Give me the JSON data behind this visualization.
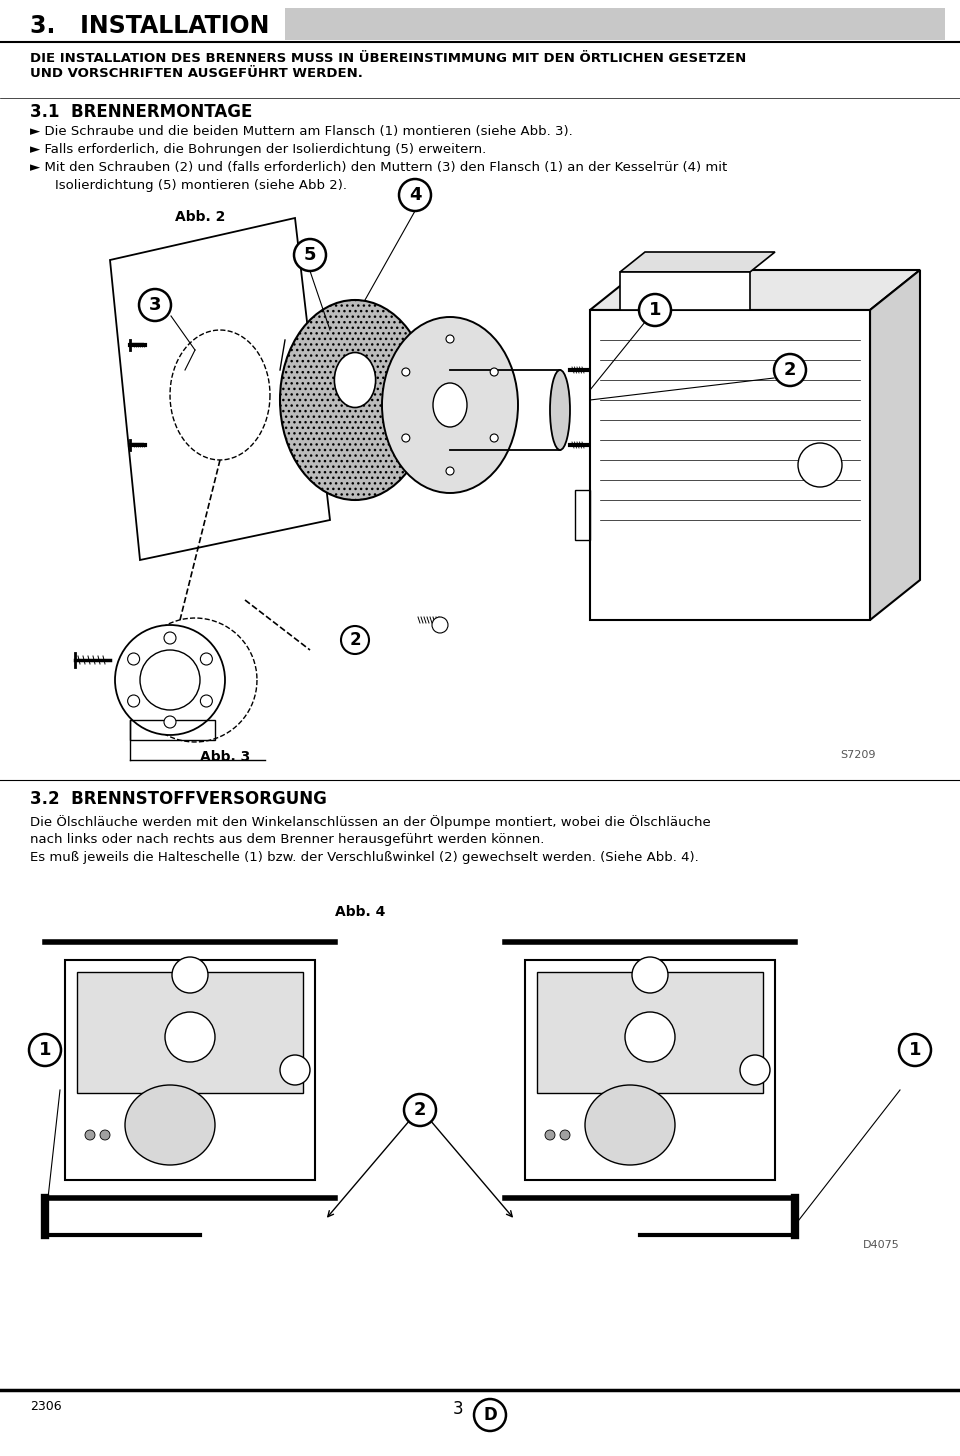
{
  "page_bg": "#ffffff",
  "header_bg": "#c8c8c8",
  "section_title": "3.   INSTALLATION",
  "warning_text": "DIE INSTALLATION DES BRENNERS MUSS IN ÜBEREINSTIMMUNG MIT DEN ÖRTLICHEN GESETZEN\nUND VORSCHRIFTEN AUSGEFÜHRT WERDEN.",
  "subsection_31": "3.1  BRENNERMONTAGE",
  "bullet1": "Die Schraube und die beiden Muttern am Flansch (1) montieren (siehe Abb. 3).",
  "bullet2": "Falls erforderlich, die Bohrungen der Isolierdichtung (5) erweitern.",
  "bullet3a": "Mit den Schrauben (2) und (falls erforderlich) den Muttern (3) den Flansch (1) an der Kesselтür (4) mit",
  "bullet3b": "Isolierdichtung (5) montieren (siehe Abb 2).",
  "abb2_label": "Abb. 2",
  "abb3_label": "Abb. 3",
  "s7209": "S7209",
  "subsection_32": "3.2  BRENNSTOFFVERSORGUNG",
  "para_32a": "Die Ölschläuche werden mit den Winkelanschlüssen an der Ölpumpe montiert, wobei die Ölschläuche",
  "para_32b": "nach links oder nach rechts aus dem Brenner herausgeführt werden können.",
  "para_32c": "Es muß jeweils die Halteschelle (1) bzw. der Verschlußwinkel (2) gewechselt werden. (Siehe Abb. 4).",
  "abb4_label": "Abb. 4",
  "page_num": "3",
  "page_code": "D",
  "doc_num": "2306",
  "ref_d4075": "D4075"
}
